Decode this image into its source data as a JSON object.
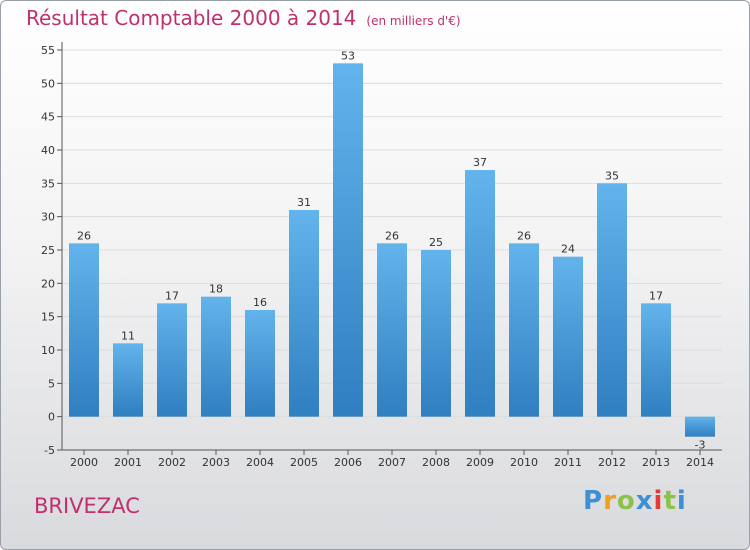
{
  "title": "Résultat Comptable 2000 à 2014",
  "subtitle": "(en milliers d'€)",
  "commune": "BRIVEZAC",
  "logo": {
    "letters": [
      "P",
      "r",
      "o",
      "x",
      "i",
      "t",
      "i"
    ],
    "colors": [
      "#3d8fd6",
      "#f0a020",
      "#8bc34a",
      "#3d8fd6",
      "#e53935",
      "#8bc34a",
      "#3d8fd6"
    ]
  },
  "colors": {
    "bar_top": "#63b3ec",
    "bar_bottom": "#2f7fc1",
    "text": "#c0306b",
    "grid": "#dcdcdc"
  },
  "chart_data": {
    "type": "bar",
    "title": "Résultat Comptable 2000 à 2014",
    "ylabel": "en milliers d'€",
    "xlabel": "",
    "categories": [
      "2000",
      "2001",
      "2002",
      "2003",
      "2004",
      "2005",
      "2006",
      "2007",
      "2008",
      "2009",
      "2010",
      "2011",
      "2012",
      "2013",
      "2014"
    ],
    "values": [
      26,
      11,
      17,
      18,
      16,
      31,
      53,
      26,
      25,
      37,
      26,
      24,
      35,
      17,
      -3
    ],
    "ylim": [
      -5,
      55
    ],
    "yticks": [
      -5,
      0,
      5,
      10,
      15,
      20,
      25,
      30,
      35,
      40,
      45,
      50,
      55
    ],
    "grid": true
  }
}
